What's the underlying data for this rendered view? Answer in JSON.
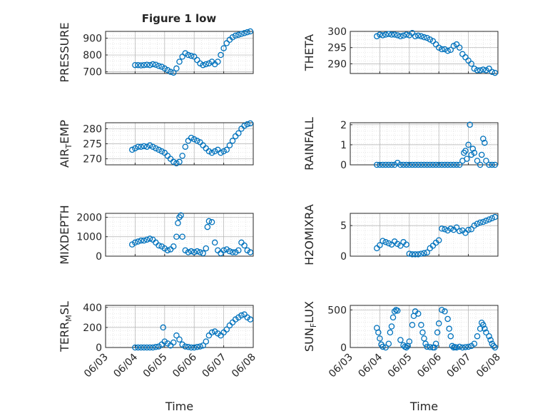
{
  "figure": {
    "title": "Figure 1 low"
  },
  "colors": {
    "marker": "#0072BD",
    "axis": "#262626",
    "grid": "#b0b0b0",
    "minor_grid": "#d8d8d8"
  },
  "chart_data": [
    {
      "id": "pressure",
      "type": "scatter",
      "title": "Figure 1 low",
      "ylabel": "PRESSURE",
      "ylim": [
        690,
        940
      ],
      "yticks": [
        700,
        800,
        900
      ],
      "xlabel": "",
      "xtick_labels": [],
      "grid": true,
      "series": [
        {
          "x": [
            4.0,
            4.1,
            4.2,
            4.3,
            4.4,
            4.5,
            4.6,
            4.7,
            4.8,
            4.9,
            5.0,
            5.1,
            5.2,
            5.3,
            5.4,
            5.5,
            5.6,
            5.7,
            5.8,
            5.9,
            6.0,
            6.1,
            6.2,
            6.3,
            6.4,
            6.5,
            6.6,
            6.7,
            6.8,
            6.9,
            7.0,
            7.1,
            7.2,
            7.3,
            7.4,
            7.5,
            7.6,
            7.7,
            7.8,
            7.9
          ],
          "y": [
            740,
            740,
            738,
            740,
            742,
            740,
            745,
            742,
            735,
            730,
            720,
            710,
            700,
            695,
            720,
            760,
            790,
            810,
            800,
            795,
            790,
            770,
            750,
            740,
            745,
            750,
            760,
            745,
            760,
            800,
            840,
            870,
            890,
            905,
            915,
            920,
            925,
            930,
            935,
            940
          ]
        }
      ]
    },
    {
      "id": "theta",
      "type": "scatter",
      "title": "",
      "ylabel": "THETA",
      "ylim": [
        287,
        300
      ],
      "yticks": [
        290,
        295,
        300
      ],
      "xlabel": "",
      "xtick_labels": [],
      "grid": true,
      "series": [
        {
          "x": [
            3.9,
            4.0,
            4.1,
            4.2,
            4.3,
            4.4,
            4.5,
            4.6,
            4.7,
            4.8,
            4.9,
            5.0,
            5.1,
            5.2,
            5.3,
            5.4,
            5.5,
            5.6,
            5.7,
            5.8,
            5.9,
            6.0,
            6.1,
            6.2,
            6.3,
            6.4,
            6.5,
            6.6,
            6.7,
            6.8,
            6.9,
            7.0,
            7.1,
            7.2,
            7.3,
            7.4,
            7.5,
            7.6,
            7.7,
            7.8,
            7.9
          ],
          "y": [
            298.5,
            299,
            298.8,
            299,
            299.2,
            299,
            299,
            298.8,
            298.5,
            298.7,
            299,
            298.8,
            299.5,
            298.5,
            298.7,
            298.5,
            298.2,
            298,
            297.5,
            297,
            296,
            295,
            294.5,
            294.5,
            294,
            294.3,
            295.5,
            296,
            295,
            293,
            292,
            291,
            290,
            288.5,
            288,
            288,
            288.2,
            288,
            288.5,
            287.5,
            287.2
          ]
        }
      ]
    },
    {
      "id": "air_temp",
      "type": "scatter",
      "title": "",
      "ylabel": "AIR",
      "ylabel_sub": "T",
      "ylabel_tail": "EMP",
      "ylim": [
        268,
        282
      ],
      "yticks": [
        270,
        275,
        280
      ],
      "xlabel": "",
      "xtick_labels": [],
      "grid": true,
      "series": [
        {
          "x": [
            3.9,
            4.0,
            4.1,
            4.2,
            4.3,
            4.4,
            4.5,
            4.6,
            4.7,
            4.8,
            4.9,
            5.0,
            5.1,
            5.2,
            5.3,
            5.4,
            5.5,
            5.6,
            5.7,
            5.8,
            5.9,
            6.0,
            6.1,
            6.2,
            6.3,
            6.4,
            6.5,
            6.6,
            6.7,
            6.8,
            6.9,
            7.0,
            7.1,
            7.2,
            7.3,
            7.4,
            7.5,
            7.6,
            7.7,
            7.8,
            7.9
          ],
          "y": [
            273,
            273.5,
            274,
            274,
            274.2,
            274,
            274.5,
            274,
            273.5,
            273,
            272.5,
            272,
            271,
            270,
            269,
            268.5,
            269,
            271,
            274,
            276,
            277,
            276.5,
            276,
            275.5,
            274.5,
            273.5,
            272.5,
            272,
            272.5,
            273,
            272,
            272.5,
            273,
            274.5,
            276,
            277.5,
            278.5,
            280,
            281,
            281.5,
            281.8
          ]
        }
      ]
    },
    {
      "id": "rainfall",
      "type": "scatter",
      "title": "",
      "ylabel": "RAINFALL",
      "ylim": [
        0,
        2.1
      ],
      "yticks": [
        0,
        1,
        2
      ],
      "xlabel": "",
      "xtick_labels": [],
      "grid": true,
      "series": [
        {
          "x": [
            3.9,
            4.0,
            4.1,
            4.2,
            4.3,
            4.4,
            4.5,
            4.6,
            4.7,
            4.8,
            4.9,
            5.0,
            5.1,
            5.2,
            5.3,
            5.4,
            5.5,
            5.6,
            5.7,
            5.8,
            5.9,
            6.0,
            6.1,
            6.2,
            6.3,
            6.4,
            6.5,
            6.6,
            6.7,
            6.8,
            6.85,
            6.9,
            6.95,
            7.0,
            7.05,
            7.1,
            7.15,
            7.2,
            7.3,
            7.4,
            7.45,
            7.5,
            7.55,
            7.6,
            7.7,
            7.8,
            7.9
          ],
          "y": [
            0,
            0,
            0,
            0,
            0,
            0,
            0,
            0.1,
            0,
            0,
            0,
            0,
            0,
            0,
            0,
            0,
            0,
            0,
            0,
            0,
            0,
            0,
            0,
            0,
            0,
            0,
            0,
            0,
            0,
            0.2,
            0.6,
            0.7,
            0.3,
            1.0,
            2.0,
            0.5,
            0.8,
            0.6,
            0.2,
            0,
            0.5,
            1.3,
            1.1,
            0.2,
            0,
            0,
            0
          ]
        }
      ]
    },
    {
      "id": "mixdepth",
      "type": "scatter",
      "title": "",
      "ylabel": "MIXDEPTH",
      "ylim": [
        0,
        2200
      ],
      "yticks": [
        0,
        1000,
        2000
      ],
      "xlabel": "",
      "xtick_labels": [],
      "grid": true,
      "series": [
        {
          "x": [
            3.9,
            4.0,
            4.1,
            4.2,
            4.3,
            4.4,
            4.5,
            4.6,
            4.7,
            4.8,
            4.9,
            5.0,
            5.1,
            5.2,
            5.3,
            5.4,
            5.45,
            5.5,
            5.55,
            5.6,
            5.7,
            5.8,
            5.9,
            6.0,
            6.1,
            6.2,
            6.3,
            6.4,
            6.45,
            6.5,
            6.6,
            6.7,
            6.8,
            6.9,
            7.0,
            7.1,
            7.2,
            7.3,
            7.4,
            7.5,
            7.6,
            7.7,
            7.8,
            7.9
          ],
          "y": [
            600,
            700,
            750,
            800,
            800,
            850,
            900,
            850,
            700,
            550,
            500,
            400,
            300,
            350,
            500,
            1000,
            1700,
            2000,
            2100,
            1000,
            300,
            200,
            250,
            200,
            250,
            200,
            150,
            400,
            1500,
            1800,
            1750,
            700,
            300,
            150,
            300,
            350,
            250,
            200,
            200,
            300,
            700,
            550,
            300,
            200
          ]
        }
      ]
    },
    {
      "id": "h2omixra",
      "type": "scatter",
      "title": "",
      "ylabel": "H2OMIXRA",
      "ylim": [
        0,
        7
      ],
      "yticks": [
        0,
        5
      ],
      "xlabel": "",
      "xtick_labels": [],
      "grid": true,
      "series": [
        {
          "x": [
            3.9,
            4.0,
            4.1,
            4.2,
            4.3,
            4.4,
            4.5,
            4.6,
            4.7,
            4.8,
            4.9,
            5.0,
            5.1,
            5.2,
            5.3,
            5.4,
            5.5,
            5.6,
            5.7,
            5.8,
            5.9,
            6.0,
            6.1,
            6.2,
            6.3,
            6.4,
            6.5,
            6.6,
            6.7,
            6.8,
            6.9,
            7.0,
            7.1,
            7.2,
            7.3,
            7.4,
            7.5,
            7.6,
            7.7,
            7.8,
            7.9
          ],
          "y": [
            1.3,
            1.8,
            2.5,
            2.3,
            2.1,
            1.9,
            2.4,
            2.0,
            1.7,
            2.3,
            1.9,
            0.4,
            0.3,
            0.3,
            0.3,
            0.4,
            0.5,
            0.6,
            1.3,
            1.7,
            2.2,
            2.6,
            4.5,
            4.4,
            4.2,
            4.5,
            4.3,
            4.7,
            4.1,
            4.2,
            3.8,
            4.3,
            4.4,
            5.0,
            5.3,
            5.5,
            5.6,
            5.8,
            6.0,
            6.2,
            6.4
          ]
        }
      ]
    },
    {
      "id": "terr_msl",
      "type": "scatter",
      "title": "",
      "ylabel": "TERR",
      "ylabel_sub": "M",
      "ylabel_tail": "SL",
      "ylim": [
        0,
        420
      ],
      "yticks": [
        0,
        200,
        400
      ],
      "xlabel": "Time",
      "xtick_labels": [
        "06/03",
        "06/04",
        "06/05",
        "06/06",
        "06/07",
        "06/08"
      ],
      "grid": true,
      "series": [
        {
          "x": [
            4.0,
            4.1,
            4.2,
            4.3,
            4.4,
            4.5,
            4.6,
            4.7,
            4.8,
            4.9,
            4.95,
            5.0,
            5.1,
            5.2,
            5.3,
            5.4,
            5.5,
            5.6,
            5.7,
            5.8,
            5.9,
            6.0,
            6.1,
            6.2,
            6.3,
            6.4,
            6.5,
            6.6,
            6.7,
            6.8,
            6.9,
            7.0,
            7.1,
            7.2,
            7.3,
            7.4,
            7.5,
            7.6,
            7.7,
            7.8,
            7.9
          ],
          "y": [
            0,
            0,
            0,
            0,
            0,
            0,
            0,
            5,
            10,
            30,
            200,
            60,
            40,
            20,
            50,
            120,
            80,
            30,
            10,
            5,
            0,
            0,
            5,
            10,
            20,
            60,
            120,
            150,
            160,
            140,
            120,
            150,
            180,
            220,
            250,
            280,
            300,
            320,
            330,
            300,
            280
          ]
        }
      ]
    },
    {
      "id": "sun_flux",
      "type": "scatter",
      "title": "",
      "ylabel": "SUN",
      "ylabel_sub": "F",
      "ylabel_tail": "LUX",
      "ylim": [
        0,
        560
      ],
      "yticks": [
        0,
        500
      ],
      "xlabel": "Time",
      "xtick_labels": [
        "06/03",
        "06/04",
        "06/05",
        "06/06",
        "06/07",
        "06/08"
      ],
      "grid": true,
      "series": [
        {
          "x": [
            3.9,
            3.95,
            4.0,
            4.05,
            4.1,
            4.2,
            4.3,
            4.35,
            4.4,
            4.45,
            4.5,
            4.55,
            4.6,
            4.7,
            4.8,
            4.85,
            4.9,
            4.95,
            5.0,
            5.1,
            5.15,
            5.2,
            5.3,
            5.4,
            5.45,
            5.5,
            5.55,
            5.6,
            5.7,
            5.8,
            5.85,
            5.9,
            5.95,
            6.0,
            6.1,
            6.2,
            6.3,
            6.35,
            6.4,
            6.45,
            6.5,
            6.55,
            6.6,
            6.7,
            6.8,
            6.9,
            7.0,
            7.1,
            7.2,
            7.3,
            7.4,
            7.45,
            7.5,
            7.55,
            7.6,
            7.7,
            7.75,
            7.8,
            7.85,
            7.9
          ],
          "y": [
            260,
            200,
            120,
            40,
            10,
            0,
            50,
            200,
            280,
            400,
            480,
            500,
            490,
            100,
            30,
            10,
            0,
            20,
            80,
            300,
            420,
            480,
            450,
            300,
            200,
            120,
            50,
            10,
            5,
            0,
            0,
            50,
            200,
            320,
            500,
            480,
            380,
            250,
            150,
            20,
            0,
            5,
            0,
            10,
            0,
            5,
            10,
            20,
            50,
            150,
            250,
            330,
            300,
            250,
            200,
            150,
            100,
            50,
            20,
            0
          ]
        }
      ]
    }
  ]
}
